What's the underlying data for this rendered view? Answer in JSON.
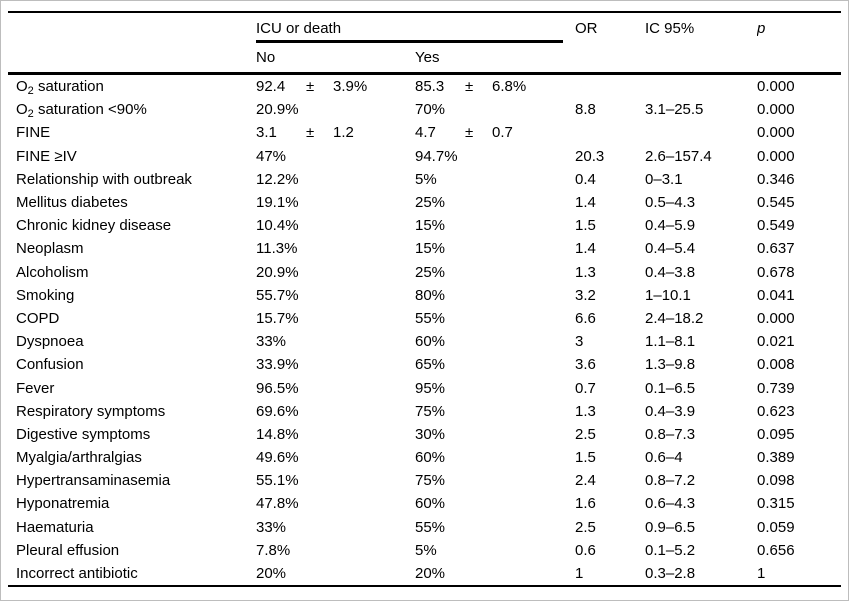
{
  "colors": {
    "rule": "#000000",
    "frame": "#bdbdbd",
    "background": "#ffffff",
    "text": "#000000"
  },
  "table": {
    "headers": {
      "group": "ICU or death",
      "no": "No",
      "yes": "Yes",
      "or": "OR",
      "ic95": "IC 95%",
      "p": "p"
    },
    "rows": [
      {
        "label": "O₂ saturation",
        "no": {
          "value": "92.4",
          "pm": "±",
          "sd": "3.9%"
        },
        "yes": {
          "value": "85.3",
          "pm": "±",
          "sd": "6.8%"
        },
        "or": "",
        "ic95": "",
        "p": "0.000"
      },
      {
        "label": "O₂ saturation <90%",
        "no": "20.9%",
        "yes": "70%",
        "or": "8.8",
        "ic95": "3.1–25.5",
        "p": "0.000"
      },
      {
        "label": "FINE",
        "no": {
          "value": "3.1",
          "pm": "±",
          "sd": "1.2"
        },
        "yes": {
          "value": "4.7",
          "pm": "±",
          "sd": "0.7"
        },
        "or": "",
        "ic95": "",
        "p": "0.000"
      },
      {
        "label": "FINE ≥IV",
        "no": "47%",
        "yes": "94.7%",
        "or": "20.3",
        "ic95": "2.6–157.4",
        "p": "0.000"
      },
      {
        "label": "Relationship with outbreak",
        "no": "12.2%",
        "yes": "5%",
        "or": "0.4",
        "ic95": "0–3.1",
        "p": "0.346"
      },
      {
        "label": "Mellitus diabetes",
        "no": "19.1%",
        "yes": "25%",
        "or": "1.4",
        "ic95": "0.5–4.3",
        "p": "0.545"
      },
      {
        "label": "Chronic kidney disease",
        "no": "10.4%",
        "yes": "15%",
        "or": "1.5",
        "ic95": "0.4–5.9",
        "p": "0.549"
      },
      {
        "label": "Neoplasm",
        "no": "11.3%",
        "yes": "15%",
        "or": "1.4",
        "ic95": "0.4–5.4",
        "p": "0.637"
      },
      {
        "label": "Alcoholism",
        "no": "20.9%",
        "yes": "25%",
        "or": "1.3",
        "ic95": "0.4–3.8",
        "p": "0.678"
      },
      {
        "label": "Smoking",
        "no": "55.7%",
        "yes": "80%",
        "or": "3.2",
        "ic95": "1–10.1",
        "p": "0.041"
      },
      {
        "label": "COPD",
        "no": "15.7%",
        "yes": "55%",
        "or": "6.6",
        "ic95": "2.4–18.2",
        "p": "0.000"
      },
      {
        "label": "Dyspnoea",
        "no": "33%",
        "yes": "60%",
        "or": "3",
        "ic95": "1.1–8.1",
        "p": "0.021"
      },
      {
        "label": "Confusion",
        "no": "33.9%",
        "yes": "65%",
        "or": "3.6",
        "ic95": "1.3–9.8",
        "p": "0.008"
      },
      {
        "label": "Fever",
        "no": "96.5%",
        "yes": "95%",
        "or": "0.7",
        "ic95": "0.1–6.5",
        "p": "0.739"
      },
      {
        "label": "Respiratory symptoms",
        "no": "69.6%",
        "yes": "75%",
        "or": "1.3",
        "ic95": "0.4–3.9",
        "p": "0.623"
      },
      {
        "label": "Digestive symptoms",
        "no": "14.8%",
        "yes": "30%",
        "or": "2.5",
        "ic95": "0.8–7.3",
        "p": "0.095"
      },
      {
        "label": "Myalgia/arthralgias",
        "no": "49.6%",
        "yes": "60%",
        "or": "1.5",
        "ic95": "0.6–4",
        "p": "0.389"
      },
      {
        "label": "Hypertransaminasemia",
        "no": "55.1%",
        "yes": "75%",
        "or": "2.4",
        "ic95": "0.8–7.2",
        "p": "0.098"
      },
      {
        "label": "Hyponatremia",
        "no": "47.8%",
        "yes": "60%",
        "or": "1.6",
        "ic95": "0.6–4.3",
        "p": "0.315"
      },
      {
        "label": "Haematuria",
        "no": "33%",
        "yes": "55%",
        "or": "2.5",
        "ic95": "0.9–6.5",
        "p": "0.059"
      },
      {
        "label": "Pleural effusion",
        "no": "7.8%",
        "yes": "5%",
        "or": "0.6",
        "ic95": "0.1–5.2",
        "p": "0.656"
      },
      {
        "label": "Incorrect antibiotic",
        "no": "20%",
        "yes": "20%",
        "or": "1",
        "ic95": "0.3–2.8",
        "p": "1"
      }
    ]
  }
}
